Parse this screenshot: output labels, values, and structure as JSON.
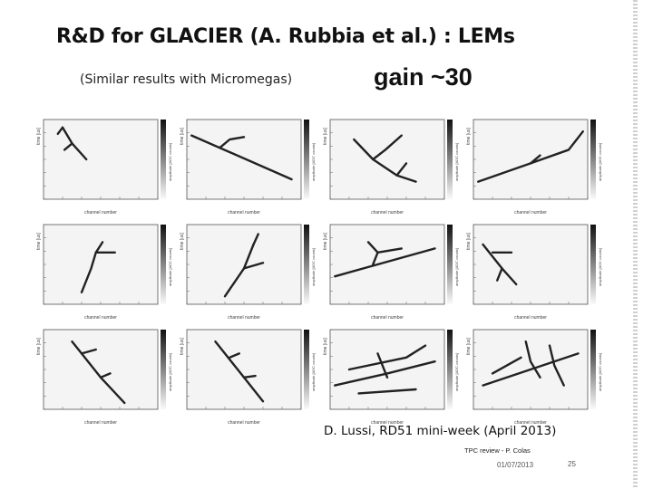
{
  "slide": {
    "title": "R&D for GLACIER (A. Rubbia et al.) : LEMs",
    "subtitle": "(Similar results with Micromegas)",
    "gain_label": "gain ~30",
    "credit": "D. Lussi, RD51 mini-week (April 2013)",
    "footer_event": "TPC review - P. Colas",
    "footer_date": "01/07/2013",
    "page_number": "25"
  },
  "event_displays": {
    "x_axis_label": "channel number",
    "y_axis_label": "time [us]",
    "colorbar_label": "amplitude [ADC counts]",
    "rows": 3,
    "cols": 4
  },
  "colors": {
    "background": "#ffffff",
    "plot_frame": "#555555",
    "track": "#222222"
  }
}
